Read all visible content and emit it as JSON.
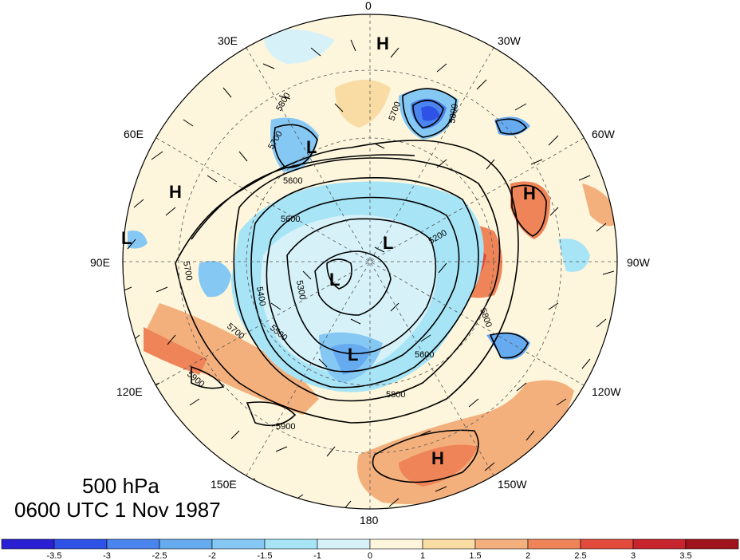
{
  "map": {
    "level_label": "500 hPa",
    "time_label": "0600 UTC 1 Nov 1987",
    "longitude_labels": {
      "lon_0": "0",
      "lon_30w": "30W",
      "lon_60w": "60W",
      "lon_90w": "90W",
      "lon_120w": "120W",
      "lon_150w": "150W",
      "lon_180": "180",
      "lon_150e": "150E",
      "lon_120e": "120E",
      "lon_90e": "90E",
      "lon_60e": "60E",
      "lon_30e": "30E"
    },
    "pressure_centers": [
      {
        "letter": "H"
      },
      {
        "letter": "H"
      },
      {
        "letter": "H"
      },
      {
        "letter": "H"
      },
      {
        "letter": "L"
      },
      {
        "letter": "L"
      },
      {
        "letter": "L"
      },
      {
        "letter": "L"
      },
      {
        "letter": "L"
      }
    ],
    "contour_labels": [
      "5800",
      "5700",
      "5600",
      "5700",
      "5800",
      "5600",
      "5700",
      "5500",
      "5400",
      "5300",
      "5200",
      "5800",
      "5900",
      "5900",
      "5600",
      "5800",
      "5700"
    ],
    "colorbar": {
      "ticks": [
        "-3.5",
        "-3",
        "-2.5",
        "-2",
        "-1.5",
        "-1",
        "0",
        "1",
        "1.5",
        "2",
        "2.5",
        "3",
        "3.5"
      ],
      "colors": [
        "#2b1fd3",
        "#2e52e6",
        "#4a84ee",
        "#66aaf0",
        "#86c8f4",
        "#a6e4f6",
        "#d6f2f8",
        "#fdf6dc",
        "#f8dca4",
        "#f4b07c",
        "#ef8458",
        "#e24a3c",
        "#c8242e",
        "#a0141e"
      ]
    }
  }
}
